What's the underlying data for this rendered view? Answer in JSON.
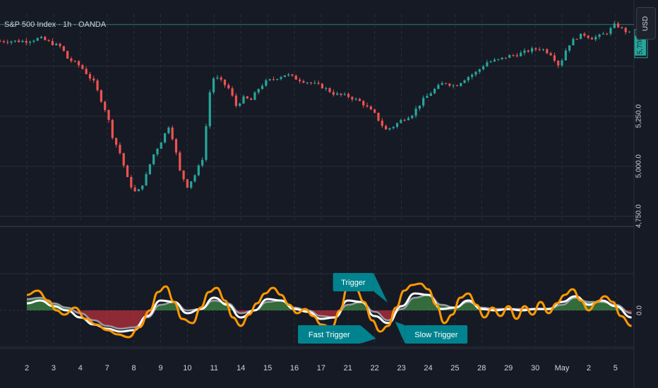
{
  "header": {
    "title": "S&P 500 Index · 1h · OANDA",
    "currency": "USD"
  },
  "colors": {
    "background": "#161a25",
    "grid": "#2a2e39",
    "up_candle": "#26a69a",
    "down_candle": "#ef5350",
    "fast_line": "#ff9800",
    "slow_line": "#ffffff",
    "signal_line": "#b2b5be",
    "positive_fill": "#4caf50",
    "negative_fill": "#f23645",
    "trigger_label": "#00838f",
    "price_line": "#26a69a"
  },
  "price_axis": {
    "ticks": [
      "5,250.0",
      "5,000.0",
      "4,750.0"
    ],
    "badges": [
      "5,708",
      "5,647.8"
    ]
  },
  "oscillator_axis": {
    "ticks": [
      "0.0"
    ]
  },
  "time_axis": {
    "labels": [
      "2",
      "3",
      "4",
      "7",
      "8",
      "9",
      "10",
      "11",
      "14",
      "15",
      "16",
      "17",
      "21",
      "22",
      "23",
      "24",
      "25",
      "28",
      "29",
      "30",
      "May",
      "2",
      "5"
    ]
  },
  "chart_data": [
    {
      "type": "candlestick",
      "title": "S&P 500 Index · 1h · OANDA",
      "yticks": [
        5250,
        5000,
        4750
      ],
      "ylim": [
        4720,
        5760
      ],
      "last_price": 5647.8,
      "reference_price": 5708,
      "x_labels": [
        "2",
        "3",
        "4",
        "7",
        "8",
        "9",
        "10",
        "11",
        "14",
        "15",
        "16",
        "17",
        "21",
        "22",
        "23",
        "24",
        "25",
        "28",
        "29",
        "30",
        "May",
        "2",
        "5"
      ],
      "close_path": [
        [
          0,
          5625
        ],
        [
          0.5,
          5640
        ],
        [
          1,
          5610
        ],
        [
          1.3,
          5595
        ],
        [
          1.5,
          5540
        ],
        [
          2,
          5500
        ],
        [
          2.5,
          5420
        ],
        [
          3,
          5260
        ],
        [
          3.2,
          5150
        ],
        [
          3.5,
          5060
        ],
        [
          3.8,
          4920
        ],
        [
          4.1,
          4860
        ],
        [
          4.4,
          4930
        ],
        [
          4.7,
          5050
        ],
        [
          5,
          5120
        ],
        [
          5.3,
          5200
        ],
        [
          5.5,
          5120
        ],
        [
          5.7,
          4980
        ],
        [
          6,
          4900
        ],
        [
          6.3,
          4960
        ],
        [
          6.6,
          5050
        ],
        [
          6.8,
          5350
        ],
        [
          7,
          5450
        ],
        [
          7.3,
          5420
        ],
        [
          7.6,
          5380
        ],
        [
          7.8,
          5300
        ],
        [
          8.1,
          5340
        ],
        [
          8.4,
          5330
        ],
        [
          8.6,
          5380
        ],
        [
          8.9,
          5420
        ],
        [
          9.3,
          5440
        ],
        [
          9.7,
          5460
        ],
        [
          10,
          5440
        ],
        [
          10.5,
          5420
        ],
        [
          11,
          5400
        ],
        [
          11.5,
          5360
        ],
        [
          12,
          5350
        ],
        [
          12.5,
          5320
        ],
        [
          13,
          5260
        ],
        [
          13.4,
          5180
        ],
        [
          13.7,
          5200
        ],
        [
          14,
          5230
        ],
        [
          14.4,
          5260
        ],
        [
          14.8,
          5330
        ],
        [
          15.2,
          5380
        ],
        [
          15.6,
          5420
        ],
        [
          16,
          5400
        ],
        [
          16.4,
          5440
        ],
        [
          16.8,
          5470
        ],
        [
          17.2,
          5520
        ],
        [
          17.6,
          5530
        ],
        [
          18,
          5550
        ],
        [
          18.4,
          5560
        ],
        [
          18.8,
          5580
        ],
        [
          19.2,
          5590
        ],
        [
          19.6,
          5560
        ],
        [
          19.9,
          5500
        ],
        [
          20.2,
          5600
        ],
        [
          20.5,
          5640
        ],
        [
          20.8,
          5660
        ],
        [
          21.1,
          5640
        ],
        [
          21.4,
          5650
        ],
        [
          21.7,
          5670
        ],
        [
          22,
          5710
        ],
        [
          22.3,
          5680
        ],
        [
          22.6,
          5660
        ]
      ]
    },
    {
      "type": "line",
      "title": "",
      "yticks": [
        0.0
      ],
      "ylim": [
        -1.3,
        1.3
      ],
      "series": [
        {
          "values": [
            [
              0,
              0.55
            ],
            [
              0.4,
              0.7
            ],
            [
              0.8,
              0.35
            ],
            [
              1.1,
              0.0
            ],
            [
              1.4,
              -0.15
            ],
            [
              1.8,
              0.1
            ],
            [
              2.2,
              -0.3
            ],
            [
              2.6,
              -0.5
            ],
            [
              3,
              -0.7
            ],
            [
              3.4,
              -0.85
            ],
            [
              3.8,
              -0.95
            ],
            [
              4.2,
              -0.6
            ],
            [
              4.6,
              0.0
            ],
            [
              4.9,
              0.65
            ],
            [
              5.2,
              0.85
            ],
            [
              5.5,
              0.3
            ],
            [
              5.8,
              -0.3
            ],
            [
              6.2,
              -0.45
            ],
            [
              6.5,
              0.1
            ],
            [
              6.8,
              0.65
            ],
            [
              7.1,
              0.8
            ],
            [
              7.4,
              0.35
            ],
            [
              7.7,
              -0.25
            ],
            [
              8,
              -0.55
            ],
            [
              8.3,
              -0.15
            ],
            [
              8.6,
              0.25
            ],
            [
              8.9,
              0.6
            ],
            [
              9.2,
              0.8
            ],
            [
              9.5,
              0.55
            ],
            [
              9.8,
              0.2
            ],
            [
              10.1,
              -0.1
            ],
            [
              10.4,
              0.05
            ],
            [
              10.7,
              -0.2
            ],
            [
              11,
              -0.5
            ],
            [
              11.4,
              -0.6
            ],
            [
              11.7,
              0.0
            ],
            [
              12,
              0.85
            ],
            [
              12.3,
              0.75
            ],
            [
              12.6,
              0.3
            ],
            [
              12.9,
              -0.35
            ],
            [
              13.2,
              -0.75
            ],
            [
              13.5,
              -0.55
            ],
            [
              13.8,
              0.1
            ],
            [
              14.1,
              0.7
            ],
            [
              14.4,
              0.9
            ],
            [
              14.7,
              0.95
            ],
            [
              15,
              0.75
            ],
            [
              15.3,
              0.2
            ],
            [
              15.6,
              -0.45
            ],
            [
              15.9,
              -0.15
            ],
            [
              16.2,
              0.45
            ],
            [
              16.5,
              0.6
            ],
            [
              16.8,
              0.2
            ],
            [
              17.1,
              -0.25
            ],
            [
              17.4,
              0.1
            ],
            [
              17.7,
              -0.2
            ],
            [
              18,
              0.15
            ],
            [
              18.3,
              -0.3
            ],
            [
              18.6,
              0.15
            ],
            [
              18.9,
              -0.15
            ],
            [
              19.2,
              0.3
            ],
            [
              19.5,
              -0.1
            ],
            [
              19.8,
              0.25
            ],
            [
              20.1,
              0.55
            ],
            [
              20.4,
              0.75
            ],
            [
              20.7,
              0.35
            ],
            [
              21,
              0.0
            ],
            [
              21.3,
              0.3
            ],
            [
              21.6,
              0.5
            ],
            [
              21.9,
              0.3
            ],
            [
              22.2,
              -0.2
            ],
            [
              22.6,
              -0.55
            ]
          ]
        },
        {
          "values": [
            [
              0,
              0.25
            ],
            [
              0.5,
              0.35
            ],
            [
              1,
              0.15
            ],
            [
              1.5,
              0.0
            ],
            [
              2,
              -0.25
            ],
            [
              2.5,
              -0.5
            ],
            [
              3,
              -0.65
            ],
            [
              3.5,
              -0.75
            ],
            [
              4,
              -0.7
            ],
            [
              4.5,
              -0.2
            ],
            [
              5,
              0.35
            ],
            [
              5.5,
              0.3
            ],
            [
              6,
              -0.1
            ],
            [
              6.5,
              0.05
            ],
            [
              7,
              0.45
            ],
            [
              7.5,
              0.2
            ],
            [
              8,
              -0.25
            ],
            [
              8.5,
              0.0
            ],
            [
              9,
              0.4
            ],
            [
              9.5,
              0.35
            ],
            [
              10,
              0.05
            ],
            [
              10.5,
              -0.05
            ],
            [
              11,
              -0.3
            ],
            [
              11.5,
              -0.25
            ],
            [
              12,
              0.35
            ],
            [
              12.5,
              0.3
            ],
            [
              13,
              -0.2
            ],
            [
              13.5,
              -0.45
            ],
            [
              14,
              0.15
            ],
            [
              14.5,
              0.6
            ],
            [
              15,
              0.55
            ],
            [
              15.5,
              0.05
            ],
            [
              16,
              0.1
            ],
            [
              16.5,
              0.35
            ],
            [
              17,
              0.05
            ],
            [
              17.5,
              0.0
            ],
            [
              18,
              0.05
            ],
            [
              18.5,
              0.0
            ],
            [
              19,
              0.05
            ],
            [
              19.5,
              0.05
            ],
            [
              20,
              0.3
            ],
            [
              20.5,
              0.5
            ],
            [
              21,
              0.2
            ],
            [
              21.5,
              0.35
            ],
            [
              22,
              0.15
            ],
            [
              22.6,
              -0.25
            ]
          ]
        },
        {
          "values": [
            [
              0,
              0.4
            ],
            [
              0.5,
              0.45
            ],
            [
              1,
              0.25
            ],
            [
              1.5,
              0.1
            ],
            [
              2,
              -0.1
            ],
            [
              2.5,
              -0.35
            ],
            [
              3,
              -0.55
            ],
            [
              3.5,
              -0.65
            ],
            [
              4,
              -0.6
            ],
            [
              4.5,
              -0.25
            ],
            [
              5,
              0.2
            ],
            [
              5.5,
              0.3
            ],
            [
              6,
              0.0
            ],
            [
              6.5,
              0.05
            ],
            [
              7,
              0.35
            ],
            [
              7.5,
              0.25
            ],
            [
              8,
              -0.1
            ],
            [
              8.5,
              0.0
            ],
            [
              9,
              0.3
            ],
            [
              9.5,
              0.35
            ],
            [
              10,
              0.1
            ],
            [
              10.5,
              0.0
            ],
            [
              11,
              -0.2
            ],
            [
              11.5,
              -0.25
            ],
            [
              12,
              0.2
            ],
            [
              12.5,
              0.3
            ],
            [
              13,
              -0.05
            ],
            [
              13.5,
              -0.35
            ],
            [
              14,
              0.05
            ],
            [
              14.5,
              0.45
            ],
            [
              15,
              0.55
            ],
            [
              15.5,
              0.2
            ],
            [
              16,
              0.1
            ],
            [
              16.5,
              0.3
            ],
            [
              17,
              0.1
            ],
            [
              17.5,
              0.05
            ],
            [
              18,
              0.05
            ],
            [
              18.5,
              0.05
            ],
            [
              19,
              0.05
            ],
            [
              19.5,
              0.05
            ],
            [
              20,
              0.2
            ],
            [
              20.5,
              0.45
            ],
            [
              21,
              0.3
            ],
            [
              21.5,
              0.3
            ],
            [
              22,
              0.2
            ],
            [
              22.6,
              -0.1
            ]
          ]
        }
      ],
      "annotations": [
        {
          "text": "Trigger",
          "x": 12.2,
          "y": 1.0
        },
        {
          "text": "Fast Trigger",
          "x": 11.3,
          "y": -0.85
        },
        {
          "text": "Slow Trigger",
          "x": 15.3,
          "y": -0.85
        }
      ]
    }
  ]
}
